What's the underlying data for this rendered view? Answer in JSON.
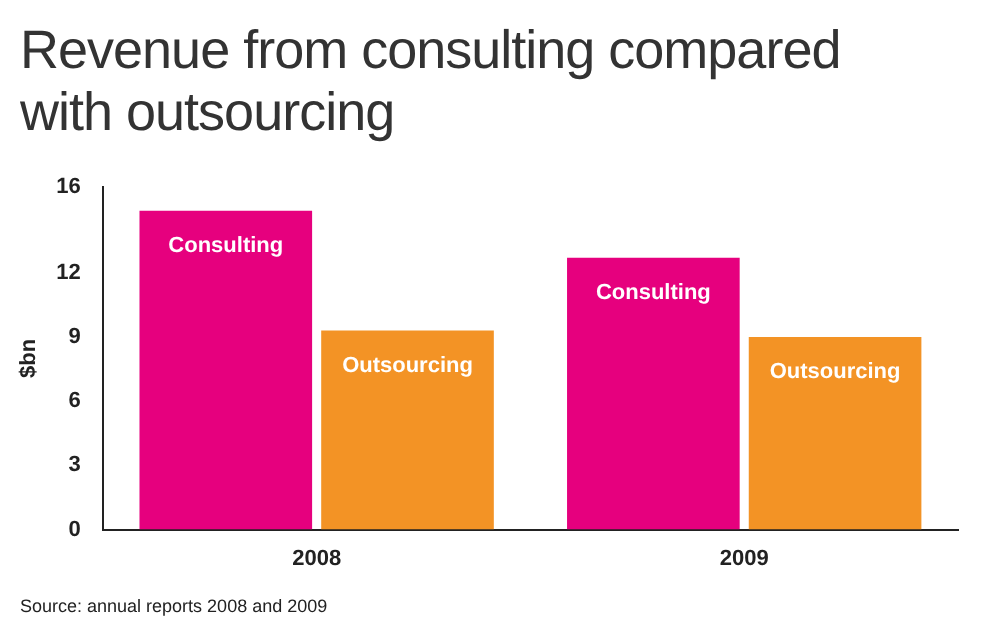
{
  "chart_data": {
    "type": "bar",
    "title": "Revenue from consulting compared with outsourcing",
    "categories": [
      "2008",
      "2009"
    ],
    "series": [
      {
        "name": "Consulting",
        "color": "#e6007e",
        "values": [
          14.9,
          12.7
        ]
      },
      {
        "name": "Outsourcing",
        "color": "#f39325",
        "values": [
          9.3,
          9.0
        ]
      }
    ],
    "ylabel": "$bn",
    "ylim": [
      0,
      16
    ],
    "yticks": [
      0,
      3,
      6,
      9,
      12,
      16
    ],
    "grid": false,
    "legend": false,
    "annotations": [
      "Source: annual reports 2008 and 2009"
    ]
  }
}
